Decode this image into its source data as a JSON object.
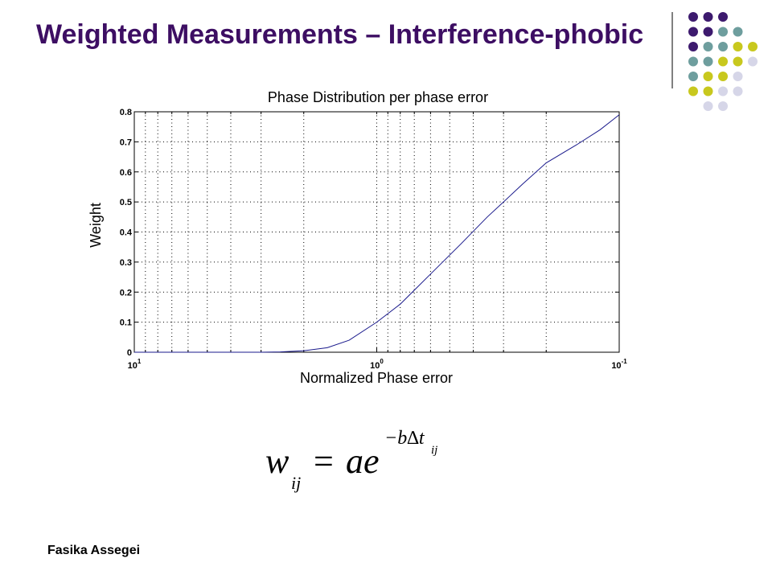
{
  "slide": {
    "title": "Weighted Measurements – Interference-phobic",
    "footer": "Fasika Assegei"
  },
  "colors": {
    "title": "#3d0e63",
    "purple": "#3d1a6e",
    "teal": "#6e9e9e",
    "olive": "#c8c81e",
    "lavender": "#d6d6e8",
    "curve": "#1a1a8c"
  },
  "decoration": {
    "rows": [
      [
        "purple",
        "purple",
        "purple"
      ],
      [
        "purple",
        "purple",
        "teal",
        "teal"
      ],
      [
        "purple",
        "teal",
        "teal",
        "olive",
        "olive"
      ],
      [
        "teal",
        "teal",
        "olive",
        "olive",
        "lavender"
      ],
      [
        "teal",
        "olive",
        "olive",
        "lavender"
      ],
      [
        "olive",
        "olive",
        "lavender",
        "lavender"
      ],
      [
        "lavender",
        "lavender"
      ]
    ]
  },
  "chart_data": {
    "type": "line",
    "title": "Phase Distribution per phase error",
    "xlabel": "Normalized Phase error",
    "ylabel": "Weight",
    "x_scale": "log-reversed",
    "xlim": [
      10,
      0.1
    ],
    "ylim": [
      0,
      0.8
    ],
    "grid": true,
    "x_ticks": [
      {
        "base": "10",
        "exp": "1"
      },
      {
        "base": "10",
        "exp": "0"
      },
      {
        "base": "10",
        "exp": "-1"
      }
    ],
    "y_ticks": [
      "0",
      "0.1",
      "0.2",
      "0.3",
      "0.4",
      "0.5",
      "0.6",
      "0.7",
      "0.8"
    ],
    "series": [
      {
        "x": [
          10,
          5,
          3,
          2.5,
          2,
          1.6,
          1.3,
          1,
          0.8,
          0.6,
          0.45,
          0.35,
          0.3,
          0.25,
          0.2,
          0.15,
          0.12,
          0.1
        ],
        "y": [
          0,
          0,
          0,
          0.001,
          0.005,
          0.015,
          0.04,
          0.1,
          0.16,
          0.26,
          0.36,
          0.45,
          0.5,
          0.56,
          0.63,
          0.69,
          0.74,
          0.79
        ]
      }
    ]
  },
  "equation": {
    "lhs": "w",
    "lhs_sub": "ij",
    "eq": "=",
    "coef": "ae",
    "exp_main": "−b∆t",
    "exp_sub": "ij"
  }
}
